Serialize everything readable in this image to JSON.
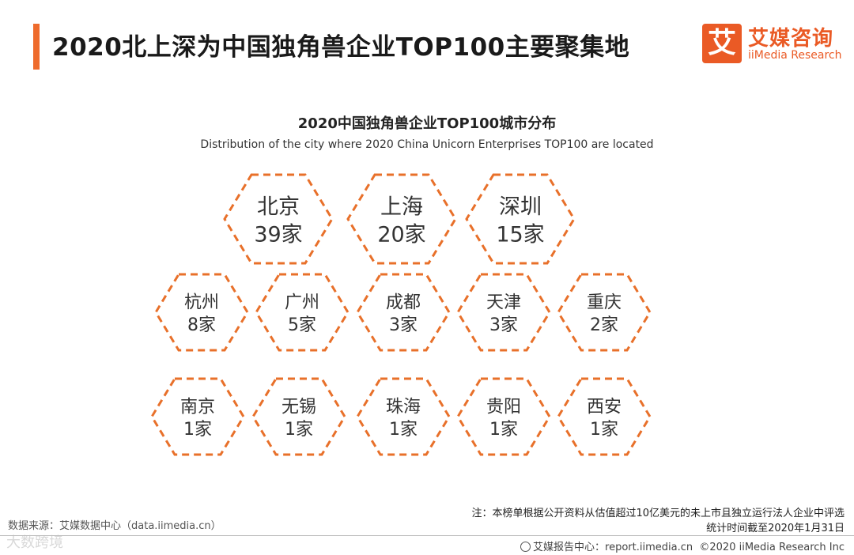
{
  "header": {
    "title": "2020北上深为中国独角兽企业TOP100主要聚集地",
    "logo_mark": "艾",
    "logo_cn": "艾媒咨询",
    "logo_en": "iiMedia Research"
  },
  "colors": {
    "accent": "#ee6b2c",
    "hex_stroke": "#e8702a"
  },
  "chart_data": {
    "type": "other",
    "title": "2020中国独角兽企业TOP100城市分布",
    "subtitle": "Distribution of the city where 2020 China Unicorn Enterprises TOP100 are located",
    "unit": "家",
    "rows": [
      [
        {
          "city": "北京",
          "value": 39
        },
        {
          "city": "上海",
          "value": 20
        },
        {
          "city": "深圳",
          "value": 15
        }
      ],
      [
        {
          "city": "杭州",
          "value": 8
        },
        {
          "city": "广州",
          "value": 5
        },
        {
          "city": "成都",
          "value": 3
        },
        {
          "city": "天津",
          "value": 3
        },
        {
          "city": "重庆",
          "value": 2
        }
      ],
      [
        {
          "city": "南京",
          "value": 1
        },
        {
          "city": "无锡",
          "value": 1
        },
        {
          "city": "珠海",
          "value": 1
        },
        {
          "city": "贵阳",
          "value": 1
        },
        {
          "city": "西安",
          "value": 1
        }
      ]
    ]
  },
  "footer": {
    "note_line1": "注：本榜单根据公开资料从估值超过10亿美元的未上市且独立运行法人企业中评选",
    "note_line2": "统计时间截至2020年1月31日",
    "source": "数据来源：艾媒数据中心（data.iimedia.cn）",
    "report_center": "艾媒报告中心：report.iimedia.cn",
    "copyright": "©2020  iiMedia Research  Inc",
    "watermark": "大数跨境"
  }
}
